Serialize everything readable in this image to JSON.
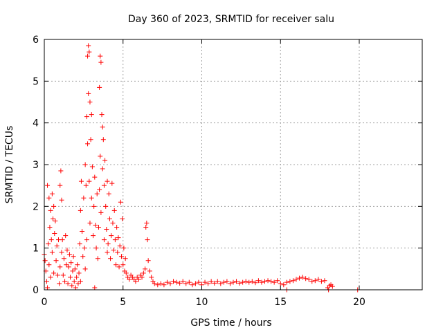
{
  "chart_data": {
    "type": "scatter",
    "title": "Day 360 of 2023, SRMTID for receiver salu",
    "xlabel": "GPS time / hours",
    "ylabel": "SRMTID / TECUs",
    "xlim": [
      0,
      24
    ],
    "ylim": [
      0,
      6
    ],
    "xticks": [
      0,
      5,
      10,
      15,
      20
    ],
    "yticks": [
      0,
      1,
      2,
      3,
      4,
      5,
      6
    ],
    "grid": true,
    "marker": "plus",
    "color": "#ff0000",
    "series": [
      {
        "name": "SRMTID",
        "points": [
          [
            0.0,
            0.85
          ],
          [
            0.05,
            0.7
          ],
          [
            0.1,
            0.45
          ],
          [
            0.15,
            0.2
          ],
          [
            0.2,
            2.5
          ],
          [
            0.2,
            0.05
          ],
          [
            0.25,
            1.1
          ],
          [
            0.3,
            2.2
          ],
          [
            0.3,
            0.6
          ],
          [
            0.35,
            1.5
          ],
          [
            0.4,
            1.9
          ],
          [
            0.4,
            0.3
          ],
          [
            0.45,
            1.2
          ],
          [
            0.5,
            2.3
          ],
          [
            0.5,
            0.9
          ],
          [
            0.55,
            1.7
          ],
          [
            0.6,
            2.0
          ],
          [
            0.6,
            0.4
          ],
          [
            0.65,
            1.35
          ],
          [
            0.7,
            1.65
          ],
          [
            0.75,
            0.7
          ],
          [
            0.8,
            1.05
          ],
          [
            0.85,
            0.35
          ],
          [
            0.9,
            1.2
          ],
          [
            0.95,
            0.15
          ],
          [
            1.0,
            2.5
          ],
          [
            1.0,
            0.55
          ],
          [
            1.05,
            2.85
          ],
          [
            1.1,
            2.15
          ],
          [
            1.1,
            0.9
          ],
          [
            1.15,
            1.2
          ],
          [
            1.2,
            0.35
          ],
          [
            1.25,
            0.75
          ],
          [
            1.3,
            0.2
          ],
          [
            1.35,
            1.3
          ],
          [
            1.4,
            0.6
          ],
          [
            1.45,
            0.95
          ],
          [
            1.5,
            0.15
          ],
          [
            1.55,
            0.55
          ],
          [
            1.6,
            0.85
          ],
          [
            1.65,
            0.3
          ],
          [
            1.7,
            0.65
          ],
          [
            1.75,
            0.1
          ],
          [
            1.8,
            0.45
          ],
          [
            1.85,
            0.8
          ],
          [
            1.9,
            0.2
          ],
          [
            1.95,
            0.5
          ],
          [
            2.0,
            0.05
          ],
          [
            2.05,
            0.3
          ],
          [
            2.1,
            0.6
          ],
          [
            2.15,
            0.15
          ],
          [
            2.2,
            0.4
          ],
          [
            2.25,
            1.1
          ],
          [
            2.3,
            1.9
          ],
          [
            2.3,
            0.2
          ],
          [
            2.35,
            2.6
          ],
          [
            2.4,
            1.4
          ],
          [
            2.45,
            0.8
          ],
          [
            2.5,
            2.2
          ],
          [
            2.55,
            1.0
          ],
          [
            2.6,
            3.0
          ],
          [
            2.6,
            0.5
          ],
          [
            2.65,
            2.5
          ],
          [
            2.7,
            4.15
          ],
          [
            2.7,
            1.2
          ],
          [
            2.75,
            5.6
          ],
          [
            2.75,
            3.5
          ],
          [
            2.8,
            5.85
          ],
          [
            2.8,
            4.7
          ],
          [
            2.85,
            5.7
          ],
          [
            2.85,
            2.6
          ],
          [
            2.9,
            4.5
          ],
          [
            2.9,
            1.6
          ],
          [
            2.95,
            3.6
          ],
          [
            3.0,
            4.2
          ],
          [
            3.0,
            2.2
          ],
          [
            3.05,
            2.95
          ],
          [
            3.1,
            1.3
          ],
          [
            3.15,
            2.0
          ],
          [
            3.2,
            2.7
          ],
          [
            3.2,
            0.05
          ],
          [
            3.25,
            1.55
          ],
          [
            3.3,
            1.0
          ],
          [
            3.35,
            2.3
          ],
          [
            3.4,
            0.75
          ],
          [
            3.45,
            1.5
          ],
          [
            3.5,
            4.85
          ],
          [
            3.5,
            2.4
          ],
          [
            3.55,
            5.6
          ],
          [
            3.55,
            3.2
          ],
          [
            3.6,
            5.45
          ],
          [
            3.6,
            1.85
          ],
          [
            3.65,
            4.2
          ],
          [
            3.7,
            3.9
          ],
          [
            3.7,
            2.9
          ],
          [
            3.75,
            3.6
          ],
          [
            3.8,
            2.5
          ],
          [
            3.8,
            1.2
          ],
          [
            3.85,
            3.1
          ],
          [
            3.9,
            2.0
          ],
          [
            3.95,
            1.45
          ],
          [
            4.0,
            2.6
          ],
          [
            4.0,
            0.9
          ],
          [
            4.05,
            1.1
          ],
          [
            4.1,
            2.3
          ],
          [
            4.15,
            1.7
          ],
          [
            4.2,
            0.75
          ],
          [
            4.25,
            1.3
          ],
          [
            4.3,
            2.55
          ],
          [
            4.35,
            1.6
          ],
          [
            4.4,
            0.95
          ],
          [
            4.45,
            1.9
          ],
          [
            4.5,
            1.2
          ],
          [
            4.55,
            0.6
          ],
          [
            4.6,
            1.5
          ],
          [
            4.65,
            0.9
          ],
          [
            4.7,
            1.25
          ],
          [
            4.75,
            0.55
          ],
          [
            4.8,
            1.05
          ],
          [
            4.85,
            2.1
          ],
          [
            4.9,
            0.8
          ],
          [
            4.95,
            1.7
          ],
          [
            5.0,
            0.6
          ],
          [
            5.05,
            1.0
          ],
          [
            5.1,
            0.45
          ],
          [
            5.15,
            0.75
          ],
          [
            5.2,
            0.4
          ],
          [
            5.3,
            0.3
          ],
          [
            5.4,
            0.25
          ],
          [
            5.5,
            0.35
          ],
          [
            5.6,
            0.3
          ],
          [
            5.7,
            0.25
          ],
          [
            5.8,
            0.2
          ],
          [
            5.9,
            0.3
          ],
          [
            6.0,
            0.25
          ],
          [
            6.1,
            0.35
          ],
          [
            6.2,
            0.3
          ],
          [
            6.3,
            0.4
          ],
          [
            6.4,
            0.5
          ],
          [
            6.45,
            1.5
          ],
          [
            6.5,
            1.6
          ],
          [
            6.55,
            1.2
          ],
          [
            6.6,
            0.7
          ],
          [
            6.7,
            0.45
          ],
          [
            6.8,
            0.3
          ],
          [
            6.9,
            0.2
          ],
          [
            7.0,
            0.15
          ],
          [
            7.2,
            0.12
          ],
          [
            7.4,
            0.15
          ],
          [
            7.6,
            0.12
          ],
          [
            7.8,
            0.18
          ],
          [
            8.0,
            0.15
          ],
          [
            8.2,
            0.2
          ],
          [
            8.4,
            0.18
          ],
          [
            8.6,
            0.16
          ],
          [
            8.8,
            0.2
          ],
          [
            9.0,
            0.15
          ],
          [
            9.2,
            0.18
          ],
          [
            9.4,
            0.12
          ],
          [
            9.6,
            0.15
          ],
          [
            9.8,
            0.18
          ],
          [
            10.0,
            0.12
          ],
          [
            10.2,
            0.18
          ],
          [
            10.4,
            0.15
          ],
          [
            10.6,
            0.2
          ],
          [
            10.8,
            0.16
          ],
          [
            11.0,
            0.2
          ],
          [
            11.2,
            0.15
          ],
          [
            11.4,
            0.18
          ],
          [
            11.6,
            0.2
          ],
          [
            11.8,
            0.15
          ],
          [
            12.0,
            0.18
          ],
          [
            12.2,
            0.2
          ],
          [
            12.4,
            0.16
          ],
          [
            12.6,
            0.18
          ],
          [
            12.8,
            0.2
          ],
          [
            13.0,
            0.18
          ],
          [
            13.2,
            0.2
          ],
          [
            13.4,
            0.17
          ],
          [
            13.6,
            0.22
          ],
          [
            13.8,
            0.18
          ],
          [
            14.0,
            0.2
          ],
          [
            14.2,
            0.22
          ],
          [
            14.4,
            0.2
          ],
          [
            14.6,
            0.18
          ],
          [
            14.8,
            0.22
          ],
          [
            15.0,
            0.15
          ],
          [
            15.2,
            0.12
          ],
          [
            15.4,
            0.18
          ],
          [
            15.6,
            0.2
          ],
          [
            15.8,
            0.22
          ],
          [
            16.0,
            0.25
          ],
          [
            16.2,
            0.28
          ],
          [
            16.4,
            0.3
          ],
          [
            16.6,
            0.27
          ],
          [
            16.8,
            0.25
          ],
          [
            17.0,
            0.2
          ],
          [
            17.2,
            0.22
          ],
          [
            17.4,
            0.25
          ],
          [
            17.6,
            0.2
          ],
          [
            17.8,
            0.22
          ],
          [
            18.0,
            0.05
          ],
          [
            18.1,
            0.1
          ],
          [
            18.2,
            0.12
          ],
          [
            18.3,
            0.08
          ],
          [
            15.4,
            0.0
          ],
          [
            18.05,
            0.0
          ],
          [
            19.9,
            0.0
          ]
        ]
      }
    ]
  }
}
